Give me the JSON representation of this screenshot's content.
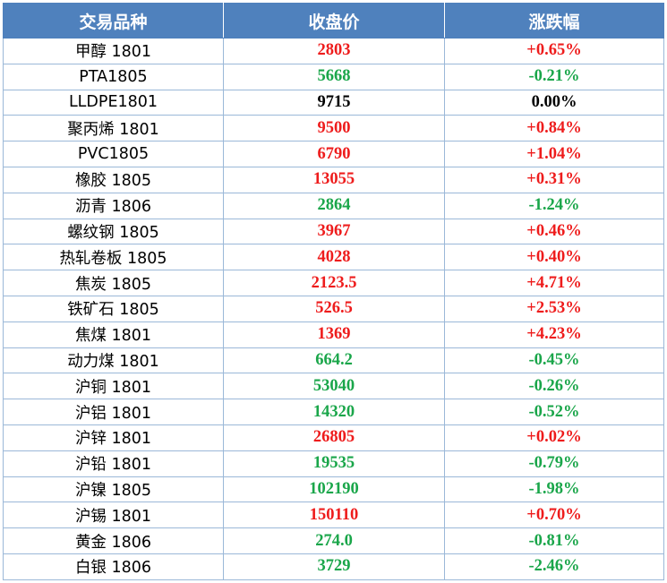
{
  "table": {
    "headers": [
      "交易品种",
      "收盘价",
      "涨跌幅"
    ],
    "colors": {
      "header_bg": "#4f81bd",
      "up": "#ee1c1c",
      "down": "#1aa64a",
      "flat": "#000000"
    },
    "rows": [
      {
        "name": "甲醇 1801",
        "price": "2803",
        "change": "+0.65%",
        "trend": "up"
      },
      {
        "name": "PTA1805",
        "price": "5668",
        "change": "-0.21%",
        "trend": "down"
      },
      {
        "name": "LLDPE1801",
        "price": "9715",
        "change": "0.00%",
        "trend": "flat"
      },
      {
        "name": "聚丙烯 1801",
        "price": "9500",
        "change": "+0.84%",
        "trend": "up"
      },
      {
        "name": "PVC1805",
        "price": "6790",
        "change": "+1.04%",
        "trend": "up"
      },
      {
        "name": "橡胶 1805",
        "price": "13055",
        "change": "+0.31%",
        "trend": "up"
      },
      {
        "name": "沥青 1806",
        "price": "2864",
        "change": "-1.24%",
        "trend": "down"
      },
      {
        "name": "螺纹钢 1805",
        "price": "3967",
        "change": "+0.46%",
        "trend": "up"
      },
      {
        "name": "热轧卷板 1805",
        "price": "4028",
        "change": "+0.40%",
        "trend": "up"
      },
      {
        "name": "焦炭 1805",
        "price": "2123.5",
        "change": "+4.71%",
        "trend": "up"
      },
      {
        "name": "铁矿石 1805",
        "price": "526.5",
        "change": "+2.53%",
        "trend": "up"
      },
      {
        "name": "焦煤 1801",
        "price": "1369",
        "change": "+4.23%",
        "trend": "up"
      },
      {
        "name": "动力煤 1801",
        "price": "664.2",
        "change": "-0.45%",
        "trend": "down"
      },
      {
        "name": "沪铜 1801",
        "price": "53040",
        "change": "-0.26%",
        "trend": "down"
      },
      {
        "name": "沪铝 1801",
        "price": "14320",
        "change": "-0.52%",
        "trend": "down"
      },
      {
        "name": "沪锌 1801",
        "price": "26805",
        "change": "+0.02%",
        "trend": "up"
      },
      {
        "name": "沪铅 1801",
        "price": "19535",
        "change": "-0.79%",
        "trend": "down"
      },
      {
        "name": "沪镍 1805",
        "price": "102190",
        "change": "-1.98%",
        "trend": "down"
      },
      {
        "name": "沪锡 1801",
        "price": "150110",
        "change": "+0.70%",
        "trend": "up"
      },
      {
        "name": "黄金 1806",
        "price": "274.0",
        "change": "-0.81%",
        "trend": "down"
      },
      {
        "name": "白银 1806",
        "price": "3729",
        "change": "-2.46%",
        "trend": "down"
      }
    ]
  }
}
